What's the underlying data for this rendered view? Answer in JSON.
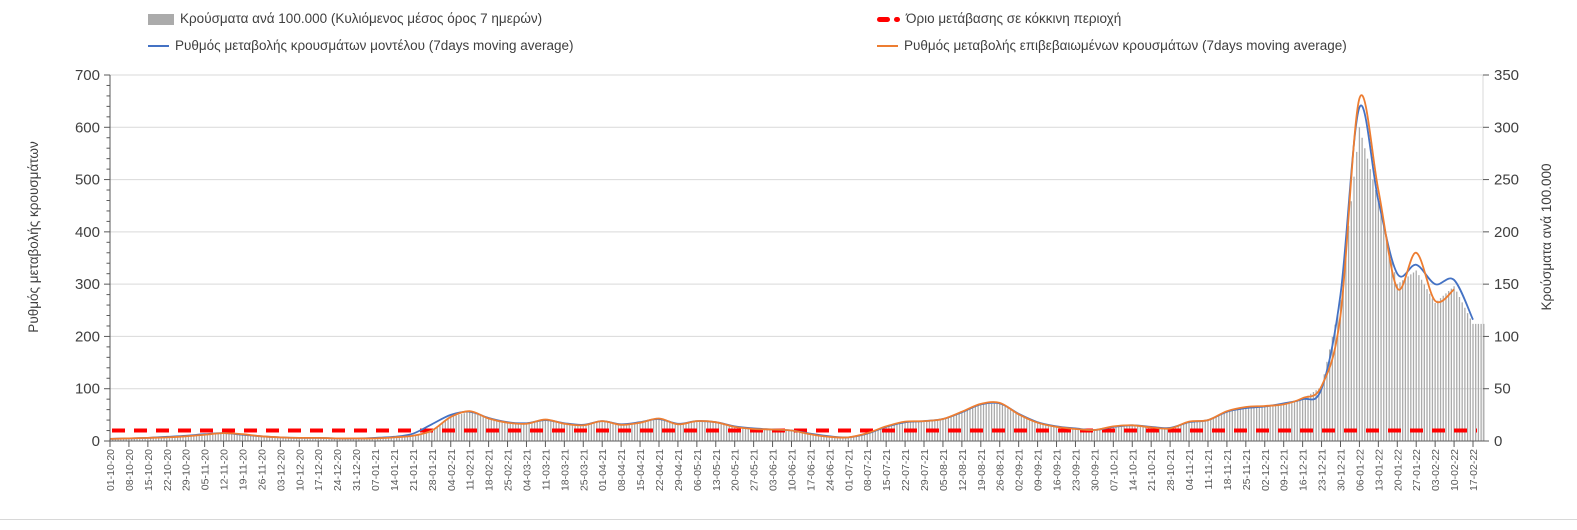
{
  "legend": {
    "items": [
      {
        "label": "Κρούσματα ανά 100.000 (Κυλιόμενος μέσος όρος 7 ημερών)",
        "swatch": "bar",
        "color": "#ABABAB"
      },
      {
        "label": "Όριο μετάβασης σε κόκκινη περιοχή",
        "swatch": "dashed-line",
        "color": "#FF0000"
      },
      {
        "label": "Ρυθμός μεταβολής κρουσμάτων μοντέλου (7days moving average)",
        "swatch": "line",
        "color": "#4472C4"
      },
      {
        "label": "Ρυθμός μεταβολής επιβεβαιωμένων κρουσμάτων (7days moving average)",
        "swatch": "line",
        "color": "#ED7D31"
      }
    ]
  },
  "colors": {
    "bars": "#ABABAB",
    "model_line": "#4472C4",
    "confirmed_line": "#ED7D31",
    "threshold_line": "#FF0000",
    "gridline": "#D9D9D9",
    "axis": "#595959",
    "tick_text": "#404040",
    "date_text": "#595959"
  },
  "chart_data": {
    "type": "bar",
    "note": "Daily COVID-19 chart: gray daily bars (right axis) + two daily rate lines (left axis) + red dashed threshold; values sampled at the 73 weekly x-tick dates",
    "sampling": "weekly",
    "x": [
      "01-10-20",
      "08-10-20",
      "15-10-20",
      "22-10-20",
      "29-10-20",
      "05-11-20",
      "12-11-20",
      "19-11-20",
      "26-11-20",
      "03-12-20",
      "10-12-20",
      "17-12-20",
      "24-12-20",
      "31-12-20",
      "07-01-21",
      "14-01-21",
      "21-01-21",
      "28-01-21",
      "04-02-21",
      "11-02-21",
      "18-02-21",
      "25-02-21",
      "04-03-21",
      "11-03-21",
      "18-03-21",
      "25-03-21",
      "01-04-21",
      "08-04-21",
      "15-04-21",
      "22-04-21",
      "29-04-21",
      "06-05-21",
      "13-05-21",
      "20-05-21",
      "27-05-21",
      "03-06-21",
      "10-06-21",
      "17-06-21",
      "24-06-21",
      "01-07-21",
      "08-07-21",
      "15-07-21",
      "22-07-21",
      "29-07-21",
      "05-08-21",
      "12-08-21",
      "19-08-21",
      "26-08-21",
      "02-09-21",
      "09-09-21",
      "16-09-21",
      "23-09-21",
      "30-09-21",
      "07-10-21",
      "14-10-21",
      "21-10-21",
      "28-10-21",
      "04-11-21",
      "11-11-21",
      "18-11-21",
      "25-11-21",
      "02-12-21",
      "09-12-21",
      "16-12-21",
      "23-12-21",
      "30-12-21",
      "06-01-22",
      "13-01-22",
      "20-01-22",
      "27-01-22",
      "03-02-22",
      "10-02-22",
      "17-02-22"
    ],
    "series": [
      {
        "name": "Κρούσματα ανά 100.000 (Κυλιόμενος μέσος όρος 7 ημερών)",
        "type": "bar",
        "axis": "right",
        "color": "#ABABAB",
        "values": [
          2,
          2.5,
          3,
          3.5,
          4.5,
          6,
          7.5,
          6.5,
          4.5,
          3.5,
          3,
          3,
          2.5,
          2.5,
          2.5,
          3.5,
          5,
          10,
          23,
          28,
          21,
          17,
          16,
          20,
          16,
          15,
          19,
          15,
          17,
          21,
          16,
          19,
          18,
          13,
          11,
          11,
          10,
          6,
          4,
          3.5,
          7,
          14,
          18,
          19,
          21,
          28,
          35,
          36,
          25,
          17,
          13,
          11,
          10,
          14,
          15,
          13,
          12,
          18,
          20,
          28,
          32,
          33,
          36,
          40,
          52,
          135,
          300,
          230,
          150,
          163,
          132,
          148,
          112
        ]
      },
      {
        "name": "Ρυθμός μεταβολής κρουσμάτων μοντέλου (7days moving average)",
        "type": "line",
        "axis": "left",
        "color": "#4472C4",
        "values": [
          4,
          5,
          6,
          8,
          10,
          13,
          15,
          12,
          9,
          7,
          6,
          6,
          5,
          5,
          6,
          8,
          14,
          32,
          50,
          56,
          44,
          36,
          34,
          40,
          34,
          31,
          38,
          32,
          36,
          42,
          33,
          38,
          36,
          28,
          24,
          22,
          20,
          14,
          9,
          7,
          14,
          27,
          36,
          38,
          42,
          55,
          70,
          72,
          52,
          36,
          28,
          24,
          21,
          27,
          30,
          27,
          25,
          36,
          40,
          56,
          63,
          66,
          72,
          80,
          100,
          280,
          638,
          460,
          320,
          337,
          300,
          308,
          232
        ]
      },
      {
        "name": "Ρυθμός μεταβολής επιβεβαιωμένων κρουσμάτων (7days moving average)",
        "type": "line",
        "axis": "left",
        "color": "#ED7D31",
        "values": [
          4,
          5,
          6,
          7,
          9,
          12,
          15,
          13,
          9,
          7,
          6,
          6,
          5,
          5,
          5,
          7,
          10,
          20,
          46,
          57,
          43,
          35,
          33,
          41,
          33,
          30,
          38,
          31,
          35,
          43,
          32,
          38,
          36,
          27,
          23,
          22,
          20,
          13,
          8,
          7,
          15,
          28,
          37,
          38,
          42,
          56,
          71,
          73,
          51,
          35,
          27,
          23,
          21,
          28,
          30,
          26,
          24,
          37,
          40,
          57,
          65,
          67,
          70,
          82,
          105,
          240,
          655,
          480,
          292,
          360,
          268,
          290,
          null
        ]
      },
      {
        "name": "Όριο μετάβασης σε κόκκινη περιοχή",
        "type": "threshold",
        "axis": "right",
        "color": "#FF0000",
        "value": 10
      }
    ],
    "left_axis": {
      "label": "Ρυθμός μεταβολής κρουσμάτων",
      "min": 0,
      "max": 700,
      "step": 100,
      "minor_step": 20
    },
    "right_axis": {
      "label": "Κρούσματα ανά 100.000",
      "min": 0,
      "max": 350,
      "step": 50
    },
    "grid": true,
    "legend_position": "top"
  }
}
